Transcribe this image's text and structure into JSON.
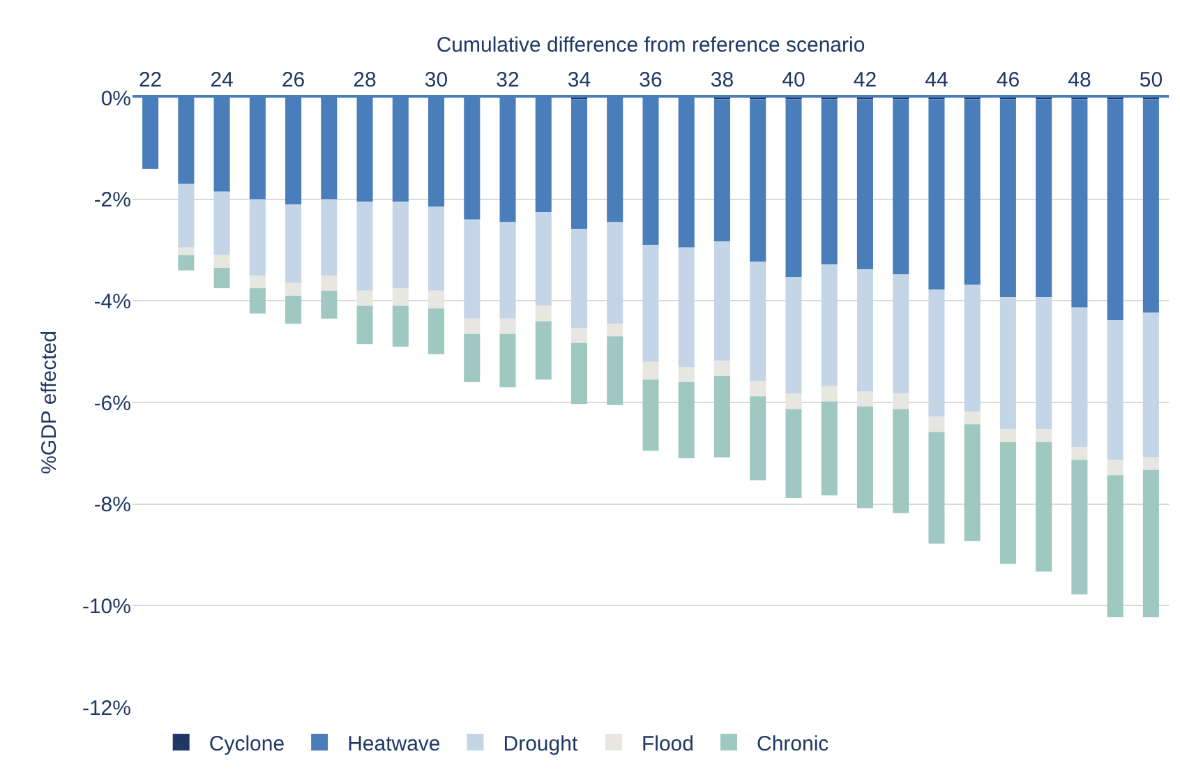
{
  "chart_data": {
    "type": "bar",
    "stacked": true,
    "xlabel": "Cumulative difference from reference scenario",
    "ylabel": "%GDP effected",
    "categories": [
      "22",
      null,
      "24",
      null,
      "26",
      null,
      "28",
      null,
      "30",
      null,
      "32",
      null,
      "34",
      null,
      "36",
      null,
      "38",
      null,
      "40",
      null,
      "42",
      null,
      "44",
      null,
      "46",
      null,
      "48",
      null,
      "50"
    ],
    "series": [
      {
        "name": "Cyclone",
        "color": "#1f3864",
        "values": [
          0,
          0,
          0,
          0,
          0,
          0,
          0,
          0,
          0,
          0,
          0,
          0,
          -0.03,
          0,
          0,
          0,
          -0.03,
          -0.03,
          -0.03,
          -0.03,
          -0.03,
          -0.03,
          -0.03,
          -0.03,
          -0.03,
          -0.03,
          -0.03,
          -0.03,
          -0.03
        ]
      },
      {
        "name": "Heatwave",
        "color": "#4a7ebb",
        "values": [
          -1.4,
          -1.7,
          -1.85,
          -2.0,
          -2.1,
          -2.0,
          -2.05,
          -2.05,
          -2.15,
          -2.4,
          -2.45,
          -2.25,
          -2.55,
          -2.45,
          -2.9,
          -2.95,
          -2.8,
          -3.2,
          -3.5,
          -3.25,
          -3.35,
          -3.45,
          -3.75,
          -3.65,
          -3.9,
          -3.9,
          -4.1,
          -4.35,
          -4.2
        ]
      },
      {
        "name": "Drought",
        "color": "#c5d5e8",
        "values": [
          0,
          -1.25,
          -1.25,
          -1.5,
          -1.55,
          -1.5,
          -1.75,
          -1.7,
          -1.65,
          -1.95,
          -1.9,
          -1.85,
          -1.95,
          -2.0,
          -2.3,
          -2.35,
          -2.35,
          -2.35,
          -2.3,
          -2.4,
          -2.4,
          -2.35,
          -2.5,
          -2.5,
          -2.6,
          -2.6,
          -2.75,
          -2.75,
          -2.85
        ]
      },
      {
        "name": "Flood",
        "color": "#e8e6e1",
        "values": [
          0,
          -0.15,
          -0.25,
          -0.25,
          -0.25,
          -0.3,
          -0.3,
          -0.35,
          -0.35,
          -0.3,
          -0.3,
          -0.3,
          -0.3,
          -0.25,
          -0.35,
          -0.3,
          -0.3,
          -0.3,
          -0.3,
          -0.3,
          -0.3,
          -0.3,
          -0.3,
          -0.25,
          -0.25,
          -0.25,
          -0.25,
          -0.3,
          -0.25
        ]
      },
      {
        "name": "Chronic",
        "color": "#9fc8c0",
        "values": [
          0,
          -0.3,
          -0.4,
          -0.5,
          -0.55,
          -0.55,
          -0.75,
          -0.8,
          -0.9,
          -0.95,
          -1.05,
          -1.15,
          -1.2,
          -1.35,
          -1.4,
          -1.5,
          -1.6,
          -1.65,
          -1.75,
          -1.85,
          -2.0,
          -2.05,
          -2.2,
          -2.3,
          -2.4,
          -2.55,
          -2.65,
          -2.8,
          -2.9
        ]
      }
    ],
    "ylim": [
      -12,
      0
    ],
    "yticks": [
      {
        "value": 0,
        "label": "0%"
      },
      {
        "value": -2,
        "label": "-2%"
      },
      {
        "value": -4,
        "label": "-4%"
      },
      {
        "value": -6,
        "label": "-6%"
      },
      {
        "value": -8,
        "label": "-8%"
      },
      {
        "value": -10,
        "label": "-10%"
      },
      {
        "value": -12,
        "label": "-12%"
      }
    ],
    "grid": "y",
    "legend": "bottom"
  }
}
